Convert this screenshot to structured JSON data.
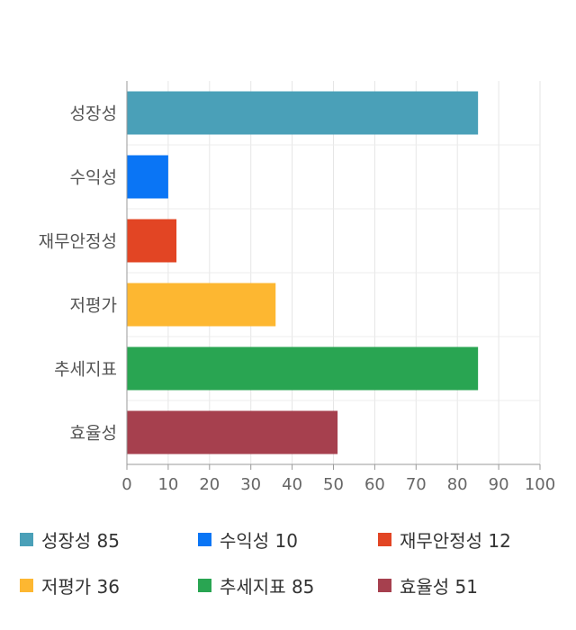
{
  "chart_data": {
    "type": "bar",
    "orientation": "horizontal",
    "categories": [
      "성장성",
      "수익성",
      "재무안정성",
      "저평가",
      "추세지표",
      "효율성"
    ],
    "values": [
      85,
      10,
      12,
      36,
      85,
      51
    ],
    "colors": [
      "#4aa0b8",
      "#0a75f5",
      "#e24524",
      "#fdb731",
      "#29a552",
      "#a6404e"
    ],
    "xlim": [
      0,
      100
    ],
    "xticks": [
      0,
      10,
      20,
      30,
      40,
      50,
      60,
      70,
      80,
      90,
      100
    ],
    "grid": true,
    "legend_position": "bottom",
    "legend": [
      {
        "label": "성장성 85",
        "color": "#4aa0b8"
      },
      {
        "label": "수익성 10",
        "color": "#0a75f5"
      },
      {
        "label": "재무안정성 12",
        "color": "#e24524"
      },
      {
        "label": "저평가 36",
        "color": "#fdb731"
      },
      {
        "label": "추세지표 85",
        "color": "#29a552"
      },
      {
        "label": "효율성 51",
        "color": "#a6404e"
      }
    ]
  }
}
